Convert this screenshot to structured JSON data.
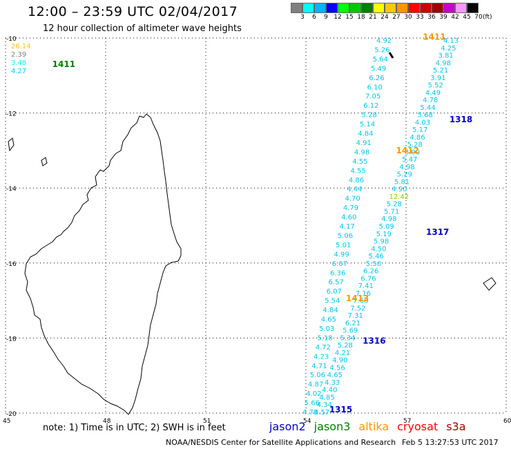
{
  "header": {
    "title": "12:00 – 23:59 UTC 02/04/2017",
    "subtitle": "12 hour collection of altimeter wave heights"
  },
  "legend": {
    "unit": "(ft)",
    "items": [
      {
        "label": "3",
        "color": "#808080"
      },
      {
        "label": "6",
        "color": "#00ffff"
      },
      {
        "label": "9",
        "color": "#00b4ff"
      },
      {
        "label": "12",
        "color": "#0000ff"
      },
      {
        "label": "15",
        "color": "#00ff00"
      },
      {
        "label": "18",
        "color": "#00c800"
      },
      {
        "label": "21",
        "color": "#008000"
      },
      {
        "label": "24",
        "color": "#ffff00"
      },
      {
        "label": "27",
        "color": "#ffc800"
      },
      {
        "label": "30",
        "color": "#ff9600"
      },
      {
        "label": "33",
        "color": "#ff0000"
      },
      {
        "label": "36",
        "color": "#c80000"
      },
      {
        "label": "39",
        "color": "#a00000"
      },
      {
        "label": "42",
        "color": "#c800c8"
      },
      {
        "label": "45",
        "color": "#ff96ff"
      },
      {
        "label": "70",
        "color": "#000000"
      }
    ]
  },
  "map": {
    "lon_range": [
      45,
      60
    ],
    "lat_range": [
      -20,
      -10
    ],
    "lat_ticks": [
      "-10",
      "-12",
      "-14",
      "-16",
      "-18",
      "-20"
    ],
    "lon_ticks": [
      "45",
      "48",
      "51",
      "54",
      "57",
      "60"
    ]
  },
  "track_labels": [
    {
      "text": "1411",
      "color": "#008000",
      "lon": 46.4,
      "lat": -10.77
    },
    {
      "text": "1411",
      "color": "#ff9600",
      "lon": 57.5,
      "lat": -10.05
    },
    {
      "text": "1412",
      "color": "#ff9600",
      "lon": 56.7,
      "lat": -13.08
    },
    {
      "text": "1318",
      "color": "#0000c8",
      "lon": 58.3,
      "lat": -12.25
    },
    {
      "text": "1317",
      "color": "#0000c8",
      "lon": 57.6,
      "lat": -15.25
    },
    {
      "text": "1413",
      "color": "#ff9600",
      "lon": 55.2,
      "lat": -17.02
    },
    {
      "text": "1316",
      "color": "#0000c8",
      "lon": 55.7,
      "lat": -18.15
    },
    {
      "text": "1315",
      "color": "#0000c8",
      "lon": 54.7,
      "lat": -19.98
    }
  ],
  "wave_heights_left": [
    {
      "v": "26.14",
      "color": "#ffc800"
    },
    {
      "v": "2.39",
      "color": "#808080"
    },
    {
      "v": "3.48",
      "color": "#00ffff"
    },
    {
      "v": "4.27",
      "color": "#00c8ff"
    }
  ],
  "track_a_values": [
    "4.92",
    "5.26",
    "5.64",
    "5.49",
    "6.26",
    "6.10",
    "7.05",
    "6.12",
    "5.28",
    "5.14",
    "4.84",
    "4.91",
    "4.98",
    "4.55",
    "4.55",
    "4.86",
    "4.44",
    "4.70",
    "4.79",
    "4.60",
    "4.17",
    "5.06",
    "5.01",
    "4.99",
    "6.07",
    "6.36",
    "6.57",
    "6.07",
    "5.54",
    "4.84",
    "4.65",
    "5.03",
    "5.18",
    "4.72",
    "4.23",
    "4.71",
    "5.06",
    "4.87",
    "4.02",
    "5.66",
    "4.78"
  ],
  "track_b_values": [
    "4.13",
    "4.25",
    "3.81",
    "4.98",
    "5.21",
    "3.91",
    "5.52",
    "4.49",
    "4.78",
    "5.44",
    "5.68",
    "4.03",
    "5.17",
    "4.86",
    "5.28",
    "3.90",
    "5.47",
    "4.98",
    "5.29",
    "5.81",
    "4.90",
    "12.42",
    "5.28",
    "5.71",
    "4.98",
    "5.09",
    "5.19",
    "5.98",
    "4.50",
    "5.46",
    "5.50",
    "6.26",
    "6.76",
    "7.41",
    "7.16",
    "7.66",
    "7.52",
    "7.31",
    "6.21",
    "5.69",
    "5.34",
    "5.28",
    "4.21",
    "4.90",
    "4.56",
    "4.65",
    "4.33",
    "4.40",
    "4.85",
    "4.34",
    "4.57"
  ],
  "footer": {
    "note": "note: 1) Time is in UTC; 2) SWH is in feet",
    "satellites": [
      {
        "name": "jason2",
        "color": "#0000c8"
      },
      {
        "name": "jason3",
        "color": "#008000"
      },
      {
        "name": "altika",
        "color": "#ff9600"
      },
      {
        "name": "cryosat",
        "color": "#ff0000"
      },
      {
        "name": "s3a",
        "color": "#a00000"
      }
    ],
    "credit": "NOAA/NESDIS Center for Satellite Applications and Research",
    "date": "Feb  5 13:27:53 UTC 2017"
  }
}
